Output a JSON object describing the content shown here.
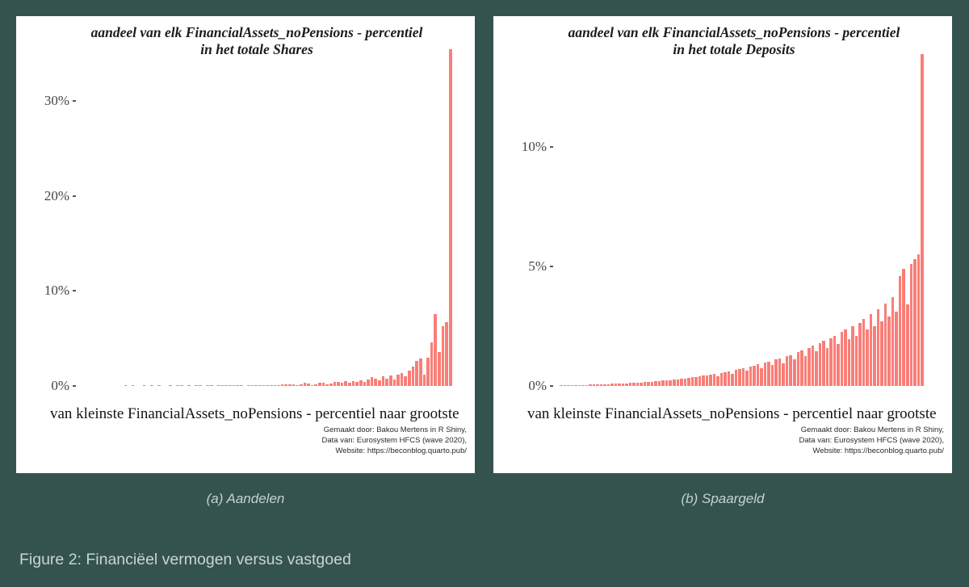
{
  "page": {
    "figure_caption": "Figure 2: Financiëel vermogen versus vastgoed"
  },
  "colors": {
    "background": "#34534F",
    "panel": "#FFFFFF",
    "bar": "#F97E77",
    "caption_text": "#C6D2CF",
    "axis_text": "#444444"
  },
  "chart_data": [
    {
      "type": "bar",
      "title": "aandeel van elk FinancialAssets_noPensions - percentiel in het totale Shares",
      "title_line1": "aandeel van elk FinancialAssets_noPensions - percentiel",
      "title_line2": "in het totale Shares",
      "xlabel": "van kleinste FinancialAssets_noPensions - percentiel naar grootste",
      "ylabel": "",
      "x_description": "percentiles 1-100 of FinancialAssets_noPensions",
      "categories_range": [
        1,
        100
      ],
      "y_ticks": [
        "0%",
        "10%",
        "20%",
        "30%"
      ],
      "ylim": [
        0,
        36
      ],
      "grid": false,
      "legend": false,
      "bar_color": "#F97E77",
      "values": [
        0,
        0,
        0,
        0,
        0,
        0,
        0,
        0,
        0,
        0,
        0,
        0,
        0.03,
        0,
        0.03,
        0,
        0,
        0.03,
        0,
        0.03,
        0,
        0.03,
        0,
        0,
        0.04,
        0,
        0.04,
        0.04,
        0,
        0.04,
        0,
        0.05,
        0.05,
        0,
        0.05,
        0.05,
        0,
        0.06,
        0.06,
        0.06,
        0.07,
        0.07,
        0.08,
        0.08,
        0,
        0.09,
        0.09,
        0.1,
        0.05,
        0.1,
        0.11,
        0.12,
        0.12,
        0.06,
        0.13,
        0.14,
        0.15,
        0.15,
        0.08,
        0.17,
        0.3,
        0.25,
        0.1,
        0.2,
        0.35,
        0.3,
        0.15,
        0.25,
        0.4,
        0.45,
        0.3,
        0.5,
        0.35,
        0.55,
        0.45,
        0.6,
        0.4,
        0.7,
        0.9,
        0.75,
        0.6,
        1.0,
        0.8,
        1.1,
        0.7,
        1.2,
        1.4,
        1.0,
        1.6,
        2.0,
        2.6,
        2.9,
        1.2,
        3.0,
        4.6,
        7.6,
        3.6,
        6.3,
        6.7,
        35.5
      ],
      "attribution": [
        "Gemaakt door: Bakou Mertens in R Shiny,",
        "Data van: Eurosystem HFCS (wave 2020),",
        "Website: https://beconblog.quarto.pub/"
      ],
      "caption": "(a) Aandelen"
    },
    {
      "type": "bar",
      "title": "aandeel van elk FinancialAssets_noPensions - percentiel in het totale Deposits",
      "title_line1": "aandeel van elk FinancialAssets_noPensions - percentiel",
      "title_line2": "in het totale Deposits",
      "xlabel": "van kleinste FinancialAssets_noPensions - percentiel naar grootste",
      "ylabel": "",
      "x_description": "percentiles 1-100 of FinancialAssets_noPensions",
      "categories_range": [
        1,
        100
      ],
      "y_ticks": [
        "0%",
        "5%",
        "10%"
      ],
      "ylim": [
        0,
        14.5
      ],
      "grid": false,
      "legend": false,
      "bar_color": "#F97E77",
      "values": [
        0.03,
        0.03,
        0.04,
        0.04,
        0.04,
        0.05,
        0.05,
        0.05,
        0.06,
        0.06,
        0.07,
        0.07,
        0.08,
        0.08,
        0.09,
        0.09,
        0.1,
        0.1,
        0.11,
        0.12,
        0.13,
        0.14,
        0.15,
        0.16,
        0.17,
        0.18,
        0.19,
        0.2,
        0.22,
        0.23,
        0.25,
        0.26,
        0.28,
        0.3,
        0.32,
        0.34,
        0.36,
        0.38,
        0.4,
        0.43,
        0.45,
        0.48,
        0.5,
        0.42,
        0.55,
        0.58,
        0.62,
        0.52,
        0.68,
        0.72,
        0.76,
        0.64,
        0.82,
        0.86,
        0.9,
        0.76,
        0.98,
        1.03,
        0.88,
        1.1,
        1.15,
        0.95,
        1.25,
        1.3,
        1.1,
        1.42,
        1.5,
        1.25,
        1.6,
        1.7,
        1.45,
        1.8,
        1.9,
        1.6,
        2.0,
        2.1,
        1.75,
        2.25,
        2.35,
        1.95,
        2.5,
        2.1,
        2.65,
        2.8,
        2.35,
        3.0,
        2.5,
        3.2,
        2.7,
        3.45,
        2.9,
        3.7,
        3.1,
        4.6,
        4.9,
        3.4,
        5.1,
        5.3,
        5.5,
        13.9
      ],
      "attribution": [
        "Gemaakt door: Bakou Mertens in R Shiny,",
        "Data van: Eurosystem HFCS (wave 2020),",
        "Website: https://beconblog.quarto.pub/"
      ],
      "caption": "(b) Spaargeld"
    }
  ]
}
